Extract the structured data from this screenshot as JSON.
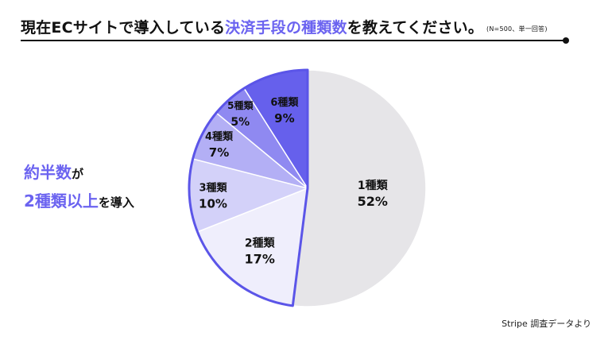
{
  "header": {
    "title_pre": "現在ECサイトで導入している",
    "title_accent": "決済手段の種類数",
    "title_post": "を教えてください。",
    "title_note": "(N=500、単一回答)"
  },
  "callout": {
    "l1_accent": "約半数",
    "l1_rest": "が",
    "l2_accent": "2種類以上",
    "l2_rest": "を導入"
  },
  "source": "Stripe 調査データより",
  "colors": {
    "accent": "#6b63f0",
    "outline": "#5b55e8"
  },
  "chart_data": {
    "type": "pie",
    "categories": [
      "1種類",
      "2種類",
      "3種類",
      "4種類",
      "5種類",
      "6種類"
    ],
    "values": [
      52,
      17,
      10,
      7,
      5,
      9
    ],
    "value_labels": [
      "52%",
      "17%",
      "10%",
      "7%",
      "5%",
      "9%"
    ],
    "start": "12 o'clock, clockwise",
    "slice_colors": [
      "#e6e5e8",
      "#efeefc",
      "#d3d1f9",
      "#b3aff5",
      "#8f89f1",
      "#6660ec"
    ],
    "highlighted_group": [
      "2種類",
      "3種類",
      "4種類",
      "5種類",
      "6種類"
    ]
  }
}
